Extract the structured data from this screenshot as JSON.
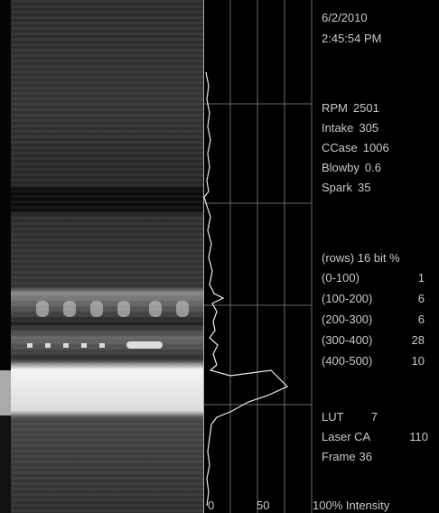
{
  "header": {
    "date": "6/2/2010",
    "time": "2:45:54 PM"
  },
  "engine": [
    {
      "label": "RPM",
      "value": "2501"
    },
    {
      "label": "Intake",
      "value": "305"
    },
    {
      "label": "CCase",
      "value": "1006"
    },
    {
      "label": "Blowby",
      "value": "0.6"
    },
    {
      "label": "Spark",
      "value": "35"
    }
  ],
  "rows_table": {
    "title": "(rows) 16 bit %",
    "rows": [
      [
        "(0-100)",
        "1"
      ],
      [
        "(100-200)",
        "6"
      ],
      [
        "(200-300)",
        "6"
      ],
      [
        "(300-400)",
        "28"
      ],
      [
        "(400-500)",
        "10"
      ]
    ]
  },
  "settings": [
    {
      "label": "LUT",
      "value": "7"
    },
    {
      "label": "Laser CA",
      "value": "110"
    },
    {
      "label": "Frame",
      "value": "36"
    }
  ],
  "plot": {
    "ticks": [
      "0",
      "50"
    ],
    "axis_label": "100% Intensity"
  }
}
